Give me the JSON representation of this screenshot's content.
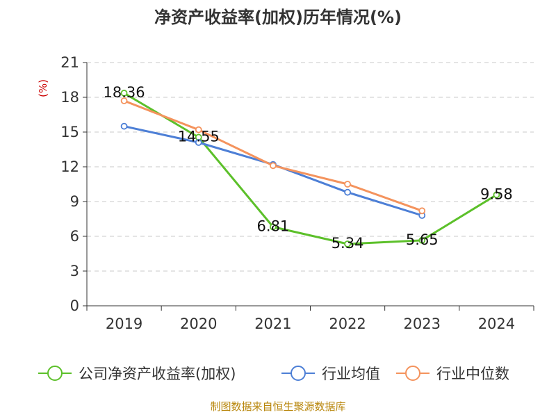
{
  "title": "净资产收益率(加权)历年情况(%)",
  "source": "制图数据来自恒生聚源数据库",
  "chart_data": {
    "type": "line",
    "title": "净资产收益率(加权)历年情况(%)",
    "ylabel": "(%)",
    "x": [
      "2019",
      "2020",
      "2021",
      "2022",
      "2023",
      "2024"
    ],
    "ylim": [
      0,
      21
    ],
    "yticks": [
      0,
      3,
      6,
      9,
      12,
      15,
      18,
      21
    ],
    "grid": true,
    "legend": "bottom",
    "series": [
      {
        "name": "公司净资产收益率(加权)",
        "color": "#5cc02a",
        "values": [
          18.36,
          14.55,
          6.81,
          5.34,
          5.65,
          9.58
        ],
        "labels": [
          "18.36",
          "14.55",
          "6.81",
          "5.34",
          "5.65",
          "9.58"
        ]
      },
      {
        "name": "行业均值",
        "color": "#4d7fd6",
        "values": [
          15.5,
          14.1,
          12.2,
          9.8,
          7.8,
          null
        ]
      },
      {
        "name": "行业中位数",
        "color": "#f4935d",
        "values": [
          17.7,
          15.2,
          12.1,
          10.5,
          8.2,
          null
        ]
      }
    ]
  }
}
